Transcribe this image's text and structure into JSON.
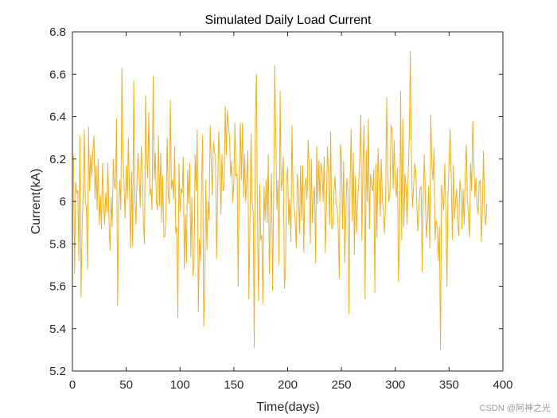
{
  "chart_data": {
    "type": "line",
    "title": "Simulated Daily Load Current",
    "xlabel": "Time(days)",
    "ylabel": "Current(kA)",
    "xlim": [
      0,
      400
    ],
    "ylim": [
      5.2,
      6.8
    ],
    "xticks": [
      0,
      50,
      100,
      150,
      200,
      250,
      300,
      350,
      400
    ],
    "xtick_labels": [
      "0",
      "50",
      "100",
      "150",
      "200",
      "250",
      "300",
      "350",
      "400"
    ],
    "yticks": [
      5.2,
      5.4,
      5.6,
      5.8,
      6.0,
      6.2,
      6.4,
      6.6,
      6.8
    ],
    "ytick_labels": [
      "5.2",
      "5.4",
      "5.6",
      "5.8",
      "6",
      "6.2",
      "6.4",
      "6.6",
      "6.8"
    ],
    "grid": false,
    "legend": "none",
    "series": [
      {
        "color": "#EDB120",
        "x_start": 1,
        "x_step": 1,
        "values": [
          6.22,
          5.66,
          6.09,
          6.04,
          6.05,
          5.72,
          6.31,
          5.55,
          5.88,
          6.03,
          6.34,
          6.01,
          5.96,
          5.68,
          6.35,
          6.05,
          6.22,
          6.12,
          6.24,
          6.31,
          6.01,
          6.17,
          5.96,
          6.2,
          5.89,
          6.03,
          5.87,
          6.18,
          6.0,
          5.89,
          6.04,
          5.95,
          6.18,
          5.91,
          5.77,
          6.02,
          5.88,
          6.2,
          6.07,
          6.06,
          6.39,
          5.51,
          5.97,
          6.1,
          5.96,
          6.63,
          6.23,
          6.08,
          5.92,
          6.17,
          6.01,
          6.3,
          6.06,
          5.78,
          6.14,
          5.79,
          6.57,
          6.04,
          5.89,
          6.09,
          6.23,
          6.13,
          5.97,
          6.26,
          6.15,
          5.89,
          5.8,
          6.5,
          6.22,
          6.11,
          6.42,
          6.03,
          6.06,
          5.96,
          6.59,
          6.1,
          6.23,
          6.0,
          5.96,
          6.31,
          5.98,
          6.23,
          5.9,
          6.12,
          5.83,
          5.84,
          5.94,
          6.3,
          6.03,
          5.99,
          6.48,
          6.06,
          6.1,
          6.01,
          6.26,
          5.85,
          5.88,
          5.45,
          6.18,
          5.95,
          6.06,
          6.04,
          6.21,
          5.68,
          5.94,
          5.71,
          6.15,
          5.99,
          6.18,
          5.74,
          6.02,
          5.65,
          5.7,
          6.22,
          6.05,
          6.34,
          5.48,
          5.82,
          5.72,
          6.09,
          6.31,
          5.41,
          5.61,
          6.1,
          5.77,
          6.0,
          5.91,
          6.36,
          6.18,
          6.03,
          6.28,
          6.23,
          6.21,
          5.73,
          6.08,
          6.33,
          6.18,
          5.94,
          6.22,
          6.05,
          6.07,
          6.45,
          6.22,
          6.43,
          6.36,
          6.3,
          6.12,
          6.19,
          6.0,
          6.09,
          6.37,
          6.12,
          6.13,
          5.6,
          6.13,
          6.37,
          6.1,
          6.37,
          6.02,
          6.22,
          6.0,
          6.1,
          6.24,
          5.54,
          5.92,
          6.32,
          6.0,
          5.95,
          5.31,
          6.4,
          6.6,
          5.88,
          5.53,
          6.08,
          5.82,
          5.84,
          5.52,
          6.07,
          5.91,
          6.1,
          5.9,
          6.22,
          5.66,
          5.93,
          6.13,
          5.58,
          6.02,
          6.64,
          6.31,
          5.96,
          6.1,
          5.7,
          6.52,
          6.05,
          6.1,
          6.21,
          5.59,
          5.67,
          6.1,
          6.16,
          5.89,
          6.01,
          5.81,
          6.36,
          6.04,
          5.98,
          5.91,
          5.78,
          6.13,
          6.05,
          5.85,
          6.17,
          5.91,
          6.17,
          5.76,
          6.07,
          6.11,
          6.01,
          6.29,
          6.17,
          5.8,
          6.2,
          5.9,
          6.03,
          6.07,
          5.71,
          6.26,
          5.99,
          6.19,
          6.0,
          6.18,
          6.14,
          6.0,
          6.21,
          5.76,
          5.98,
          6.26,
          6.13,
          5.89,
          6.33,
          5.87,
          5.89,
          6.04,
          6.12,
          5.99,
          5.97,
          5.88,
          5.64,
          6.27,
          6.21,
          5.87,
          6.19,
          5.71,
          5.91,
          6.11,
          6.06,
          5.47,
          6.09,
          6.34,
          5.91,
          6.23,
          5.75,
          6.12,
          5.85,
          6.0,
          6.08,
          6.21,
          6.41,
          5.82,
          6.18,
          6.36,
          5.54,
          6.24,
          6.0,
          6.39,
          5.87,
          6.13,
          6.07,
          6.05,
          6.15,
          5.57,
          6.18,
          5.83,
          6.25,
          6.08,
          5.93,
          6.2,
          6.01,
          5.96,
          5.85,
          6.0,
          6.49,
          6.15,
          6.0,
          6.03,
          6.36,
          6.34,
          6.06,
          6.29,
          6.08,
          6.02,
          6.16,
          5.62,
          5.84,
          6.52,
          5.82,
          6.39,
          5.88,
          6.13,
          6.07,
          5.89,
          6.14,
          6.3,
          6.71,
          6.2,
          5.97,
          6.07,
          6.18,
          6.15,
          5.98,
          5.86,
          5.98,
          6.06,
          6.07,
          5.67,
          6.03,
          6.22,
          6.0,
          5.83,
          5.92,
          6.07,
          5.78,
          6.41,
          6.17,
          6.1,
          6.25,
          5.82,
          5.91,
          5.88,
          5.72,
          5.88,
          5.3,
          6.08,
          6.02,
          5.96,
          6.18,
          5.94,
          5.6,
          6.03,
          6.18,
          6.34,
          6.11,
          5.82,
          6.17,
          5.92,
          6.0,
          6.06,
          5.89,
          5.84,
          6.1,
          6.05,
          5.87,
          6.06,
          5.89,
          6.12,
          6.27,
          6.01,
          5.92,
          5.83,
          6.18,
          6.05,
          6.38,
          6.2,
          6.02,
          6.11,
          5.98,
          5.94,
          6.09,
          6.1,
          5.81,
          5.99,
          6.24,
          5.94,
          5.89,
          5.99
        ]
      }
    ]
  },
  "watermark": "CSDN @阿神之光"
}
